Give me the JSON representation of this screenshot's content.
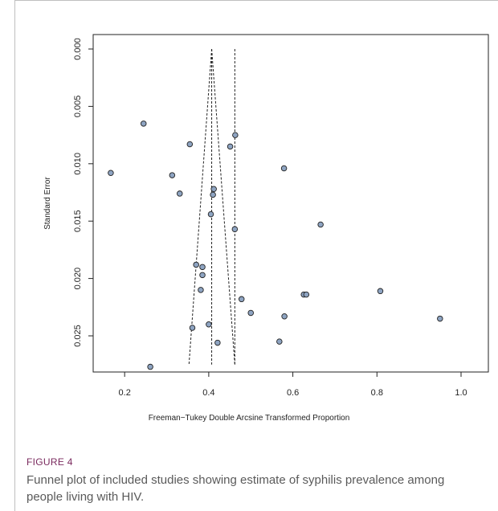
{
  "figure": {
    "label": "FIGURE 4",
    "caption": "Funnel plot of included studies showing estimate of syphilis prevalence among people living with HIV."
  },
  "chart_data": {
    "type": "scatter",
    "title": "",
    "xlabel": "Freeman−Tukey Double Arcsine Transformed Proportion",
    "ylabel": "Standard Error",
    "xlim": [
      0.15,
      1.0
    ],
    "ylim": [
      0.0,
      0.0275
    ],
    "y_reversed": true,
    "x_ticks": [
      "0.2",
      "0.4",
      "0.6",
      "0.8",
      "1.0"
    ],
    "y_ticks": [
      "0.000",
      "0.005",
      "0.010",
      "0.015",
      "0.020",
      "0.025"
    ],
    "grid": false,
    "point_color": "#8ea4c2",
    "point_edge": "#222222",
    "funnel": {
      "pooled_estimate": 0.407,
      "apex_se": 0.0,
      "bottom_se": 0.0275,
      "lower_x_at_bottom": 0.353,
      "upper_x_at_bottom": 0.462,
      "reference_line_x": 0.462
    },
    "points": [
      {
        "x": 0.245,
        "y": 0.0065
      },
      {
        "x": 0.463,
        "y": 0.0075
      },
      {
        "x": 0.355,
        "y": 0.0083
      },
      {
        "x": 0.451,
        "y": 0.0085
      },
      {
        "x": 0.579,
        "y": 0.0104
      },
      {
        "x": 0.167,
        "y": 0.0108
      },
      {
        "x": 0.313,
        "y": 0.011
      },
      {
        "x": 0.412,
        "y": 0.0122
      },
      {
        "x": 0.331,
        "y": 0.0126
      },
      {
        "x": 0.41,
        "y": 0.0127
      },
      {
        "x": 0.405,
        "y": 0.0144
      },
      {
        "x": 0.666,
        "y": 0.0153
      },
      {
        "x": 0.462,
        "y": 0.0157
      },
      {
        "x": 0.37,
        "y": 0.0188
      },
      {
        "x": 0.385,
        "y": 0.019
      },
      {
        "x": 0.385,
        "y": 0.0197
      },
      {
        "x": 0.626,
        "y": 0.0214
      },
      {
        "x": 0.632,
        "y": 0.0214
      },
      {
        "x": 0.808,
        "y": 0.0211
      },
      {
        "x": 0.478,
        "y": 0.0218
      },
      {
        "x": 0.381,
        "y": 0.021
      },
      {
        "x": 0.5,
        "y": 0.023
      },
      {
        "x": 0.58,
        "y": 0.0233
      },
      {
        "x": 0.95,
        "y": 0.0235
      },
      {
        "x": 0.4,
        "y": 0.024
      },
      {
        "x": 0.361,
        "y": 0.0243
      },
      {
        "x": 0.568,
        "y": 0.0255
      },
      {
        "x": 0.421,
        "y": 0.0256
      },
      {
        "x": 0.261,
        "y": 0.0277
      }
    ]
  }
}
